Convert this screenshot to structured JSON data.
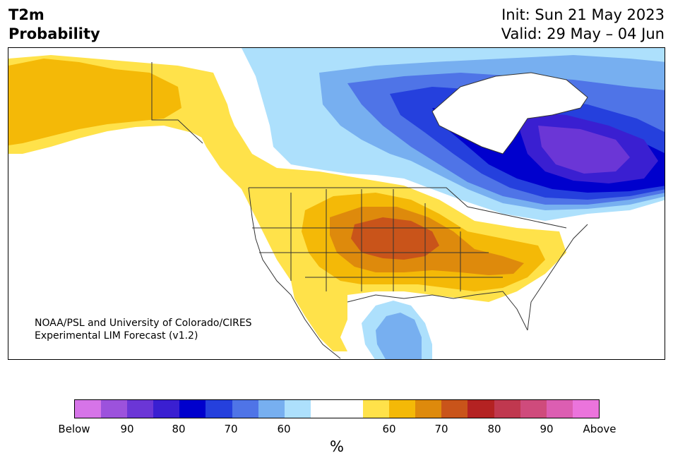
{
  "title": {
    "line1": "T2m",
    "line2": "Probability"
  },
  "info": {
    "init": "Init: Sun 21 May 2023",
    "valid": "Valid: 29 May – 04 Jun"
  },
  "credit": {
    "line1": "NOAA/PSL and University of Colorado/CIRES",
    "line2": "Experimental LIM Forecast (v1.2)"
  },
  "colorbar": {
    "unit": "%",
    "ticks": [
      "Below",
      "90",
      "80",
      "70",
      "60",
      "60",
      "70",
      "80",
      "90",
      "Above"
    ],
    "colors": [
      "#d674e8",
      "#9c52dc",
      "#6b36d6",
      "#3a1fd1",
      "#0000cd",
      "#2540dd",
      "#4f74e7",
      "#77aff0",
      "#ade0fc",
      "#ffffff",
      "#ffffff",
      "#ffe24a",
      "#f4b907",
      "#de8a0c",
      "#c9541a",
      "#b42222",
      "#c0384f",
      "#cf4b7c",
      "#dc5eb2",
      "#eb74dc"
    ]
  },
  "map": {
    "colors": {
      "land": "#ffffff",
      "below60": "#ade0fc",
      "below70": "#77aff0",
      "below75": "#4f74e7",
      "below80": "#2540dd",
      "below85": "#0000cd",
      "below90": "#3a1fd1",
      "below95": "#6b36d6",
      "above60": "#ffe24a",
      "above65": "#f4b907",
      "above70": "#de8a0c",
      "above75": "#c9541a",
      "border": "#333333"
    }
  }
}
